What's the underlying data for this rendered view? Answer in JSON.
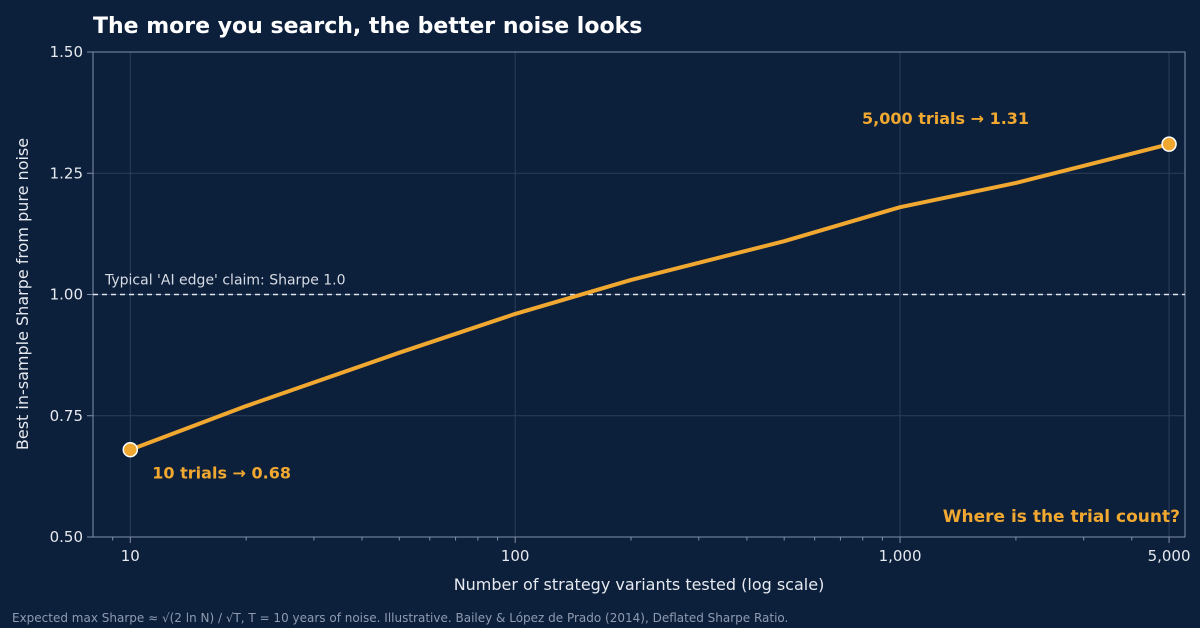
{
  "chart_data": {
    "type": "line",
    "title": "The more you search, the better noise looks",
    "xlabel": "Number of strategy variants tested (log scale)",
    "ylabel": "Best in-sample Sharpe from pure noise",
    "x_scale": "log",
    "xlim": [
      8,
      5500
    ],
    "ylim": [
      0.5,
      1.5
    ],
    "x_ticks": [
      10,
      100,
      1000,
      5000
    ],
    "x_tick_labels": [
      "10",
      "100",
      "1,000",
      "5,000"
    ],
    "y_ticks": [
      0.5,
      0.75,
      1.0,
      1.25,
      1.5
    ],
    "y_tick_labels": [
      "0.50",
      "0.75",
      "1.00",
      "1.25",
      "1.50"
    ],
    "grid": true,
    "series": [
      {
        "x": [
          10,
          20,
          50,
          100,
          200,
          500,
          1000,
          2000,
          5000
        ],
        "values": [
          0.68,
          0.77,
          0.88,
          0.96,
          1.03,
          1.11,
          1.18,
          1.23,
          1.31
        ],
        "color": "#f0a830"
      }
    ],
    "markers": [
      {
        "x": 10,
        "y": 0.68
      },
      {
        "x": 5000,
        "y": 1.31
      }
    ],
    "reference_line": {
      "y": 1.0,
      "label": "Typical 'AI edge' claim: Sharpe 1.0",
      "style": "dashed",
      "color": "#dfe3ea"
    },
    "annotations": {
      "low_point": "10 trials → 0.68",
      "high_point": "5,000 trials → 1.31",
      "callout": "Where is the trial count?"
    },
    "footnote": "Expected max Sharpe ≈ √(2 ln N) / √T, T = 10 years of noise. Illustrative. Bailey & López de Prado (2014), Deflated Sharpe Ratio."
  },
  "colors": {
    "background": "#0c1f3b",
    "accent": "#f0a830",
    "grid": "#2c3e5a",
    "text": "#e6e9ef"
  }
}
